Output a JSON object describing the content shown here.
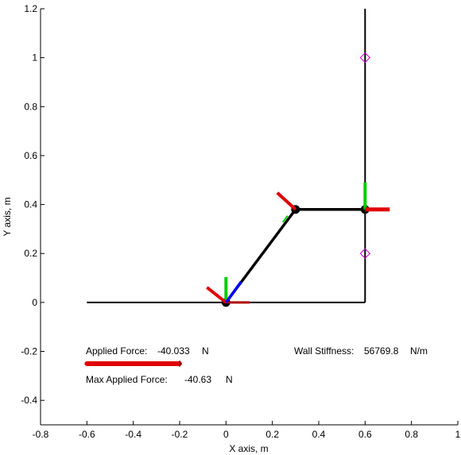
{
  "chart_data": {
    "type": "line",
    "xlabel": "X axis, m",
    "ylabel": "Y axis, m",
    "xlim": [
      -0.8,
      1.0
    ],
    "ylim": [
      -0.5,
      1.2
    ],
    "xticks": [
      "-0.8",
      "-0.6",
      "-0.4",
      "-0.2",
      "0",
      "0.2",
      "0.4",
      "0.6",
      "0.8",
      "1"
    ],
    "yticks": [
      "1.2",
      "1",
      "0.8",
      "0.6",
      "0.4",
      "0.2",
      "0",
      "-0.2",
      "-0.4"
    ],
    "grid": false,
    "wall": {
      "floor": [
        [
          -0.6,
          0.0
        ],
        [
          0.6,
          0.0
        ]
      ],
      "vertical": [
        [
          0.6,
          0.0
        ],
        [
          0.6,
          1.2
        ]
      ]
    },
    "robot_arm": [
      [
        0.0,
        0.0
      ],
      [
        0.3,
        0.38
      ],
      [
        0.6,
        0.38
      ]
    ],
    "wall_markers": [
      [
        0.6,
        1.0
      ],
      [
        0.6,
        0.2
      ]
    ],
    "annotations": {
      "applied_force_label": "Applied Force:",
      "applied_force_value": "-40.033",
      "applied_force_unit": "N",
      "max_force_label": "Max Applied Force:",
      "max_force_value": "-40.63",
      "max_force_unit": "N",
      "wall_stiffness_label": "Wall Stiffness:",
      "wall_stiffness_value": "56769.8",
      "wall_stiffness_unit": "N/m"
    },
    "force_bar": {
      "start_x": -0.6,
      "end_x": -0.2,
      "y": -0.25
    }
  },
  "colors": {
    "arm": "#000000",
    "force": "#e00000",
    "green": "#00cc00",
    "blue": "#0000ff",
    "marker": "#cc00cc"
  }
}
